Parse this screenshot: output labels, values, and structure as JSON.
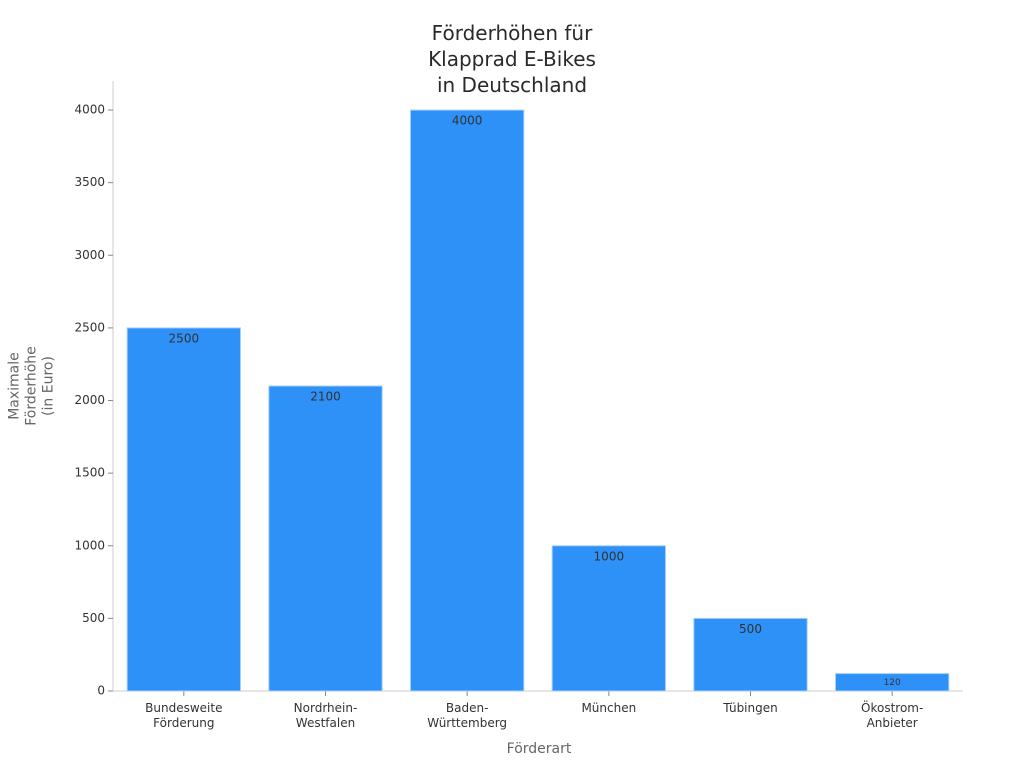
{
  "chart_data": {
    "type": "bar",
    "title": "Förderhöhen für\nKlapprad E-Bikes\nin Deutschland",
    "x_label": "Förderart",
    "y_label": "Maximale\nFörderhöhe\n(in Euro)",
    "categories": [
      "Bundesweite\nFörderung",
      "Nordrhein-\nWestfalen",
      "Baden-\nWürttemberg",
      "München",
      "Tübingen",
      "Ökostrom-\nAnbieter"
    ],
    "values": [
      2500,
      2100,
      4000,
      1000,
      500,
      120
    ],
    "color": "#2e91f7",
    "ylim": [
      0,
      4200
    ],
    "yticks": [
      0,
      500,
      1000,
      1500,
      2000,
      2500,
      3000,
      3500,
      4000
    ]
  }
}
